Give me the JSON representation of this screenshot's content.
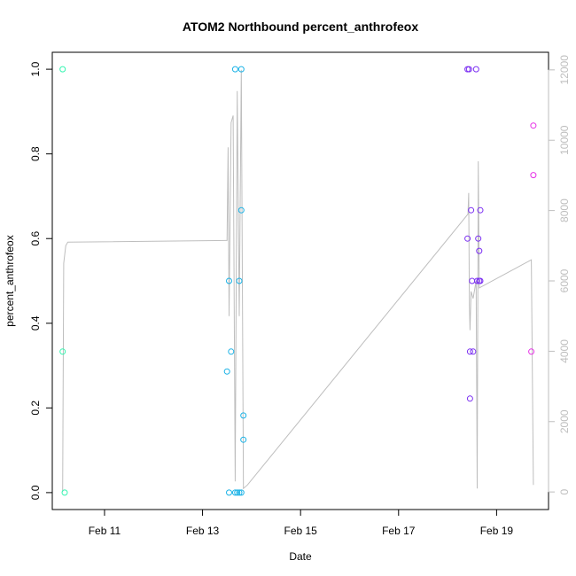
{
  "chart_data": {
    "type": "scatter",
    "title": "ATOM2 Northbound percent_anthrofeox",
    "xlabel": "Date",
    "ylabel": "percent_anthrofeox",
    "x_ticks": [
      "Feb 11",
      "Feb 13",
      "Feb 15",
      "Feb 17",
      "Feb 19"
    ],
    "y_ticks": [
      "0.0",
      "0.2",
      "0.4",
      "0.6",
      "0.8",
      "1.0"
    ],
    "y_ticks_right": [
      "0",
      "2000",
      "4000",
      "6000",
      "8000",
      "10000",
      "12000"
    ],
    "xlim": [
      "Feb 9 22:25",
      "Feb 20 01:26"
    ],
    "ylim": [
      -0.04,
      1.04
    ],
    "ylim_right": [
      -500,
      12500
    ],
    "grid": false,
    "series": [
      {
        "color": "#33f5b0",
        "points": [
          {
            "x": "Feb 10 03:30",
            "y": 1.0
          },
          {
            "x": "Feb 10 03:30",
            "y": 0.333
          },
          {
            "x": "Feb 10 04:30",
            "y": 0.0
          }
        ]
      },
      {
        "color": "#1ab2e6",
        "points": [
          {
            "x": "Feb 13 12:00",
            "y": 0.286
          },
          {
            "x": "Feb 13 13:00",
            "y": 0.5
          },
          {
            "x": "Feb 13 13:00",
            "y": 0.0
          },
          {
            "x": "Feb 13 14:00",
            "y": 0.333
          },
          {
            "x": "Feb 13 16:00",
            "y": 1.0
          },
          {
            "x": "Feb 13 16:00",
            "y": 0.0
          },
          {
            "x": "Feb 13 17:00",
            "y": 0.0
          },
          {
            "x": "Feb 13 18:00",
            "y": 0.0
          },
          {
            "x": "Feb 13 18:00",
            "y": 0.5
          },
          {
            "x": "Feb 13 19:00",
            "y": 1.0
          },
          {
            "x": "Feb 13 19:00",
            "y": 0.667
          },
          {
            "x": "Feb 13 19:00",
            "y": 0.0
          },
          {
            "x": "Feb 13 20:00",
            "y": 0.182
          },
          {
            "x": "Feb 13 20:00",
            "y": 0.125
          }
        ]
      },
      {
        "color": "#7b2ff2",
        "points": [
          {
            "x": "Feb 18 09:45",
            "y": 1.0
          },
          {
            "x": "Feb 18 09:45",
            "y": 0.6
          },
          {
            "x": "Feb 18 10:30",
            "y": 1.0
          },
          {
            "x": "Feb 18 11:00",
            "y": 0.333
          },
          {
            "x": "Feb 18 11:00",
            "y": 0.222
          },
          {
            "x": "Feb 18 11:30",
            "y": 0.667
          },
          {
            "x": "Feb 18 12:00",
            "y": 0.5
          },
          {
            "x": "Feb 18 12:30",
            "y": 0.333
          },
          {
            "x": "Feb 18 14:00",
            "y": 1.0
          },
          {
            "x": "Feb 18 14:30",
            "y": 0.5
          },
          {
            "x": "Feb 18 15:00",
            "y": 0.6
          },
          {
            "x": "Feb 18 15:30",
            "y": 0.571
          },
          {
            "x": "Feb 18 15:30",
            "y": 0.5
          },
          {
            "x": "Feb 18 16:00",
            "y": 0.667
          },
          {
            "x": "Feb 18 16:00",
            "y": 0.5
          }
        ]
      },
      {
        "color": "#e62ee6",
        "points": [
          {
            "x": "Feb 19 17:00",
            "y": 0.333
          },
          {
            "x": "Feb 19 18:00",
            "y": 0.867
          },
          {
            "x": "Feb 19 18:00",
            "y": 0.75
          }
        ]
      }
    ],
    "line_series": {
      "axis": "right",
      "color": "#bebebe",
      "points": [
        {
          "x": "Feb 10 03:30",
          "y": 0
        },
        {
          "x": "Feb 10 04:00",
          "y": 6500
        },
        {
          "x": "Feb 10 05:00",
          "y": 7000
        },
        {
          "x": "Feb 10 06:00",
          "y": 7100
        },
        {
          "x": "Feb 13 12:00",
          "y": 7150
        },
        {
          "x": "Feb 13 12:30",
          "y": 9800
        },
        {
          "x": "Feb 13 13:00",
          "y": 5000
        },
        {
          "x": "Feb 13 14:00",
          "y": 10500
        },
        {
          "x": "Feb 13 15:00",
          "y": 10700
        },
        {
          "x": "Feb 13 16:00",
          "y": 300
        },
        {
          "x": "Feb 13 17:00",
          "y": 11400
        },
        {
          "x": "Feb 13 18:00",
          "y": 5000
        },
        {
          "x": "Feb 13 19:00",
          "y": 12000
        },
        {
          "x": "Feb 13 20:00",
          "y": 100
        },
        {
          "x": "Feb 13 22:00",
          "y": 200
        },
        {
          "x": "Feb 18 10:00",
          "y": 7900
        },
        {
          "x": "Feb 18 10:20",
          "y": 8500
        },
        {
          "x": "Feb 18 10:40",
          "y": 5300
        },
        {
          "x": "Feb 18 11:00",
          "y": 4600
        },
        {
          "x": "Feb 18 11:30",
          "y": 5700
        },
        {
          "x": "Feb 18 12:30",
          "y": 5500
        },
        {
          "x": "Feb 18 14:00",
          "y": 6000
        },
        {
          "x": "Feb 18 14:30",
          "y": 100
        },
        {
          "x": "Feb 18 15:00",
          "y": 9400
        },
        {
          "x": "Feb 18 15:30",
          "y": 5800
        },
        {
          "x": "Feb 19 17:00",
          "y": 6600
        },
        {
          "x": "Feb 19 18:00",
          "y": 200
        }
      ]
    }
  }
}
